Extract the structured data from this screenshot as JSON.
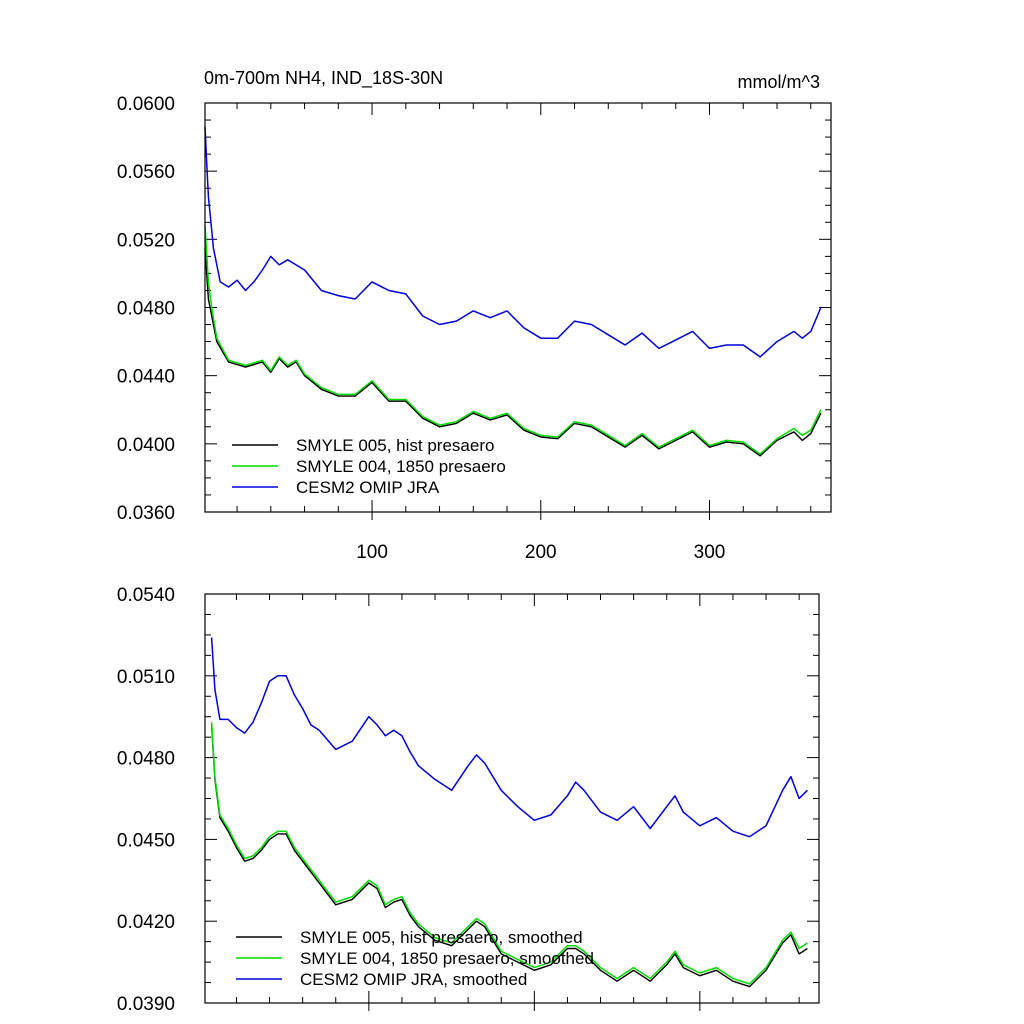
{
  "chart_data": [
    {
      "type": "line",
      "title": "0m-700m NH4, IND_18S-30N",
      "units": "mmol/m^3",
      "xlim": [
        1,
        372
      ],
      "ylim": [
        0.036,
        0.06
      ],
      "yticks": [
        "0.0360",
        "0.0400",
        "0.0440",
        "0.0480",
        "0.0520",
        "0.0560",
        "0.0600"
      ],
      "xticks": [
        "100",
        "200",
        "300"
      ],
      "legend_position": "bottom-left",
      "series": [
        {
          "name": "SMYLE 005, hist presaero",
          "color": "#000000",
          "x": [
            1,
            3,
            5,
            8,
            15,
            25,
            35,
            40,
            45,
            50,
            55,
            60,
            70,
            80,
            90,
            100,
            110,
            120,
            130,
            140,
            150,
            160,
            170,
            180,
            190,
            200,
            210,
            220,
            230,
            240,
            250,
            260,
            270,
            280,
            290,
            300,
            310,
            320,
            330,
            340,
            350,
            355,
            360,
            366
          ],
          "y": [
            0.0515,
            0.0485,
            0.0475,
            0.046,
            0.0448,
            0.0445,
            0.0448,
            0.0442,
            0.045,
            0.0445,
            0.0448,
            0.044,
            0.0432,
            0.0428,
            0.0428,
            0.0436,
            0.0425,
            0.0425,
            0.0415,
            0.041,
            0.0412,
            0.0418,
            0.0414,
            0.0417,
            0.0408,
            0.0404,
            0.0403,
            0.0412,
            0.041,
            0.0404,
            0.0398,
            0.0405,
            0.0397,
            0.0402,
            0.0407,
            0.0398,
            0.0401,
            0.04,
            0.0393,
            0.0402,
            0.0407,
            0.0402,
            0.0406,
            0.0418
          ]
        },
        {
          "name": "SMYLE 004, 1850 presaero",
          "color": "#00dd00",
          "x": [
            1,
            3,
            5,
            8,
            15,
            25,
            35,
            40,
            45,
            50,
            55,
            60,
            70,
            80,
            90,
            100,
            110,
            120,
            130,
            140,
            150,
            160,
            170,
            180,
            190,
            200,
            210,
            220,
            230,
            240,
            250,
            260,
            270,
            280,
            290,
            300,
            310,
            320,
            330,
            340,
            350,
            355,
            360,
            366
          ],
          "y": [
            0.0528,
            0.0495,
            0.048,
            0.0462,
            0.0449,
            0.0446,
            0.0449,
            0.0443,
            0.0451,
            0.0446,
            0.0449,
            0.0441,
            0.0433,
            0.0429,
            0.0429,
            0.0437,
            0.0426,
            0.0426,
            0.0416,
            0.0411,
            0.0413,
            0.0419,
            0.0415,
            0.0418,
            0.0409,
            0.0405,
            0.0404,
            0.0413,
            0.0411,
            0.0405,
            0.0399,
            0.0406,
            0.0398,
            0.0403,
            0.0408,
            0.0399,
            0.0402,
            0.0401,
            0.0394,
            0.0403,
            0.0409,
            0.0405,
            0.0408,
            0.042
          ]
        },
        {
          "name": "CESM2 OMIP JRA",
          "color": "#0000dd",
          "x": [
            1,
            2,
            3,
            4,
            6,
            10,
            15,
            20,
            25,
            30,
            35,
            40,
            45,
            50,
            55,
            60,
            70,
            80,
            90,
            100,
            110,
            120,
            130,
            140,
            150,
            160,
            170,
            180,
            190,
            200,
            210,
            220,
            230,
            240,
            250,
            260,
            270,
            280,
            290,
            300,
            310,
            320,
            330,
            340,
            350,
            355,
            360,
            366
          ],
          "y": [
            0.0586,
            0.0565,
            0.0545,
            0.0535,
            0.0515,
            0.0495,
            0.0492,
            0.0496,
            0.049,
            0.0495,
            0.0502,
            0.051,
            0.0505,
            0.0508,
            0.0505,
            0.0502,
            0.049,
            0.0487,
            0.0485,
            0.0495,
            0.049,
            0.0488,
            0.0475,
            0.047,
            0.0472,
            0.0478,
            0.0474,
            0.0478,
            0.0468,
            0.0462,
            0.0462,
            0.0472,
            0.047,
            0.0464,
            0.0458,
            0.0465,
            0.0456,
            0.0461,
            0.0466,
            0.0456,
            0.0458,
            0.0458,
            0.0451,
            0.046,
            0.0466,
            0.0462,
            0.0466,
            0.048
          ]
        }
      ]
    },
    {
      "type": "line",
      "xlim": [
        1,
        372
      ],
      "ylim": [
        0.039,
        0.054
      ],
      "yticks": [
        "0.0390",
        "0.0420",
        "0.0450",
        "0.0480",
        "0.0510",
        "0.0540"
      ],
      "legend_position": "bottom-left",
      "series": [
        {
          "name": "SMYLE 005, hist presaero, smoothed",
          "color": "#000000",
          "x": [
            5,
            7,
            10,
            15,
            20,
            25,
            30,
            35,
            40,
            45,
            50,
            55,
            60,
            65,
            70,
            80,
            90,
            100,
            105,
            110,
            115,
            120,
            125,
            130,
            140,
            150,
            160,
            165,
            170,
            180,
            190,
            200,
            210,
            220,
            225,
            230,
            240,
            250,
            260,
            270,
            280,
            285,
            290,
            300,
            310,
            320,
            330,
            340,
            350,
            355,
            360,
            365
          ],
          "y": [
            0.0492,
            0.0472,
            0.0458,
            0.0453,
            0.0447,
            0.0442,
            0.0443,
            0.0446,
            0.045,
            0.0452,
            0.0452,
            0.0446,
            0.0442,
            0.0438,
            0.0434,
            0.0426,
            0.0428,
            0.0434,
            0.0432,
            0.0425,
            0.0427,
            0.0428,
            0.0422,
            0.0418,
            0.0413,
            0.0411,
            0.0417,
            0.042,
            0.0418,
            0.0408,
            0.0405,
            0.0402,
            0.0404,
            0.041,
            0.041,
            0.0408,
            0.0402,
            0.0398,
            0.0402,
            0.0398,
            0.0404,
            0.0408,
            0.0403,
            0.04,
            0.0402,
            0.0398,
            0.0396,
            0.0402,
            0.0412,
            0.0415,
            0.0408,
            0.041
          ]
        },
        {
          "name": "SMYLE 004, 1850 presaero, smoothed",
          "color": "#00dd00",
          "x": [
            5,
            7,
            10,
            15,
            20,
            25,
            30,
            35,
            40,
            45,
            50,
            55,
            60,
            65,
            70,
            80,
            90,
            100,
            105,
            110,
            115,
            120,
            125,
            130,
            140,
            150,
            160,
            165,
            170,
            180,
            190,
            200,
            210,
            220,
            225,
            230,
            240,
            250,
            260,
            270,
            280,
            285,
            290,
            300,
            310,
            320,
            330,
            340,
            350,
            355,
            360,
            365
          ],
          "y": [
            0.0493,
            0.0473,
            0.0459,
            0.0454,
            0.0448,
            0.0443,
            0.0444,
            0.0447,
            0.0451,
            0.0453,
            0.0453,
            0.0447,
            0.0443,
            0.0439,
            0.0435,
            0.0427,
            0.0429,
            0.0435,
            0.0433,
            0.0426,
            0.0428,
            0.0429,
            0.0423,
            0.0419,
            0.0414,
            0.0412,
            0.0418,
            0.0421,
            0.0419,
            0.0409,
            0.0406,
            0.0403,
            0.0405,
            0.0411,
            0.0411,
            0.0409,
            0.0403,
            0.0399,
            0.0403,
            0.0399,
            0.0405,
            0.0409,
            0.0404,
            0.0401,
            0.0403,
            0.0399,
            0.0397,
            0.0403,
            0.0413,
            0.0416,
            0.041,
            0.0412
          ]
        },
        {
          "name": "CESM2 OMIP JRA, smoothed",
          "color": "#0000dd",
          "x": [
            5,
            7,
            10,
            15,
            20,
            25,
            30,
            35,
            40,
            45,
            50,
            55,
            60,
            65,
            70,
            80,
            90,
            100,
            105,
            110,
            115,
            120,
            125,
            130,
            140,
            150,
            160,
            165,
            170,
            180,
            190,
            200,
            210,
            220,
            225,
            230,
            240,
            250,
            260,
            270,
            280,
            285,
            290,
            300,
            310,
            320,
            330,
            340,
            350,
            355,
            360,
            365
          ],
          "y": [
            0.0524,
            0.0505,
            0.0494,
            0.0494,
            0.0491,
            0.0489,
            0.0493,
            0.05,
            0.0508,
            0.051,
            0.051,
            0.0503,
            0.0498,
            0.0492,
            0.049,
            0.0483,
            0.0486,
            0.0495,
            0.0492,
            0.0488,
            0.049,
            0.0488,
            0.0482,
            0.0477,
            0.0472,
            0.0468,
            0.0477,
            0.0481,
            0.0478,
            0.0468,
            0.0462,
            0.0457,
            0.0459,
            0.0466,
            0.0471,
            0.0468,
            0.046,
            0.0457,
            0.0462,
            0.0454,
            0.0462,
            0.0466,
            0.046,
            0.0455,
            0.0458,
            0.0453,
            0.0451,
            0.0455,
            0.0468,
            0.0473,
            0.0465,
            0.0468
          ]
        }
      ]
    }
  ]
}
